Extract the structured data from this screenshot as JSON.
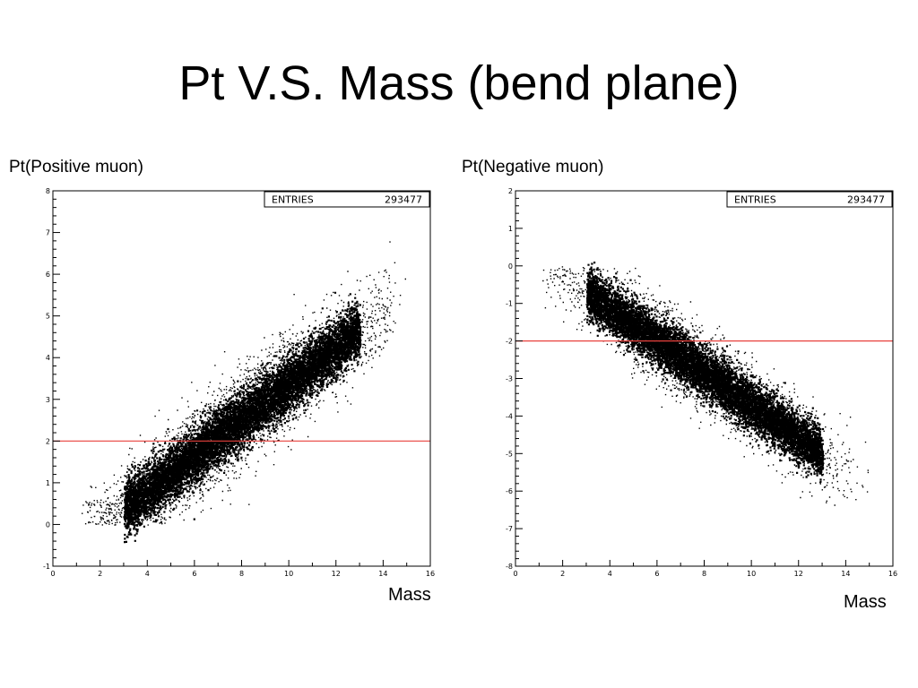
{
  "slide": {
    "title": "Pt V.S. Mass (bend plane)"
  },
  "colors": {
    "cut_line": "#e8413c",
    "points": "#000000",
    "frame": "#000000"
  },
  "chart_data": [
    {
      "type": "scatter",
      "title": "",
      "ylabel": "Pt(Positive muon)",
      "xlabel": "Mass",
      "xlim": [
        0,
        16
      ],
      "ylim": [
        -1,
        8
      ],
      "xticks": [
        "0",
        "2",
        "4",
        "6",
        "8",
        "10",
        "12",
        "14",
        "16"
      ],
      "yticks": [
        "-1",
        "0",
        "1",
        "2",
        "3",
        "4",
        "5",
        "6",
        "7",
        "8"
      ],
      "stats": {
        "label": "ENTRIES",
        "value": "293477"
      },
      "cut_line_y": 2,
      "density": {
        "mass_range": [
          1,
          15
        ],
        "trend": {
          "slope": 0.43,
          "intercept": -0.9
        },
        "band_halfwidth": 0.9,
        "y_floor": 0
      },
      "grid": false,
      "legend": "none"
    },
    {
      "type": "scatter",
      "title": "",
      "ylabel": "Pt(Negative muon)",
      "xlabel": "Mass",
      "xlim": [
        0,
        16
      ],
      "ylim": [
        -8,
        2
      ],
      "xticks": [
        "0",
        "2",
        "4",
        "6",
        "8",
        "10",
        "12",
        "14",
        "16"
      ],
      "yticks": [
        "-8",
        "-7",
        "-6",
        "-5",
        "-4",
        "-3",
        "-2",
        "-1",
        "0",
        "1",
        "2"
      ],
      "stats": {
        "label": "ENTRIES",
        "value": "293477"
      },
      "cut_line_y": -2,
      "density": {
        "mass_range": [
          1,
          15
        ],
        "trend": {
          "slope": -0.43,
          "intercept": 0.6
        },
        "band_halfwidth": 0.9,
        "y_ceiling": 0
      },
      "grid": false,
      "legend": "none"
    }
  ]
}
